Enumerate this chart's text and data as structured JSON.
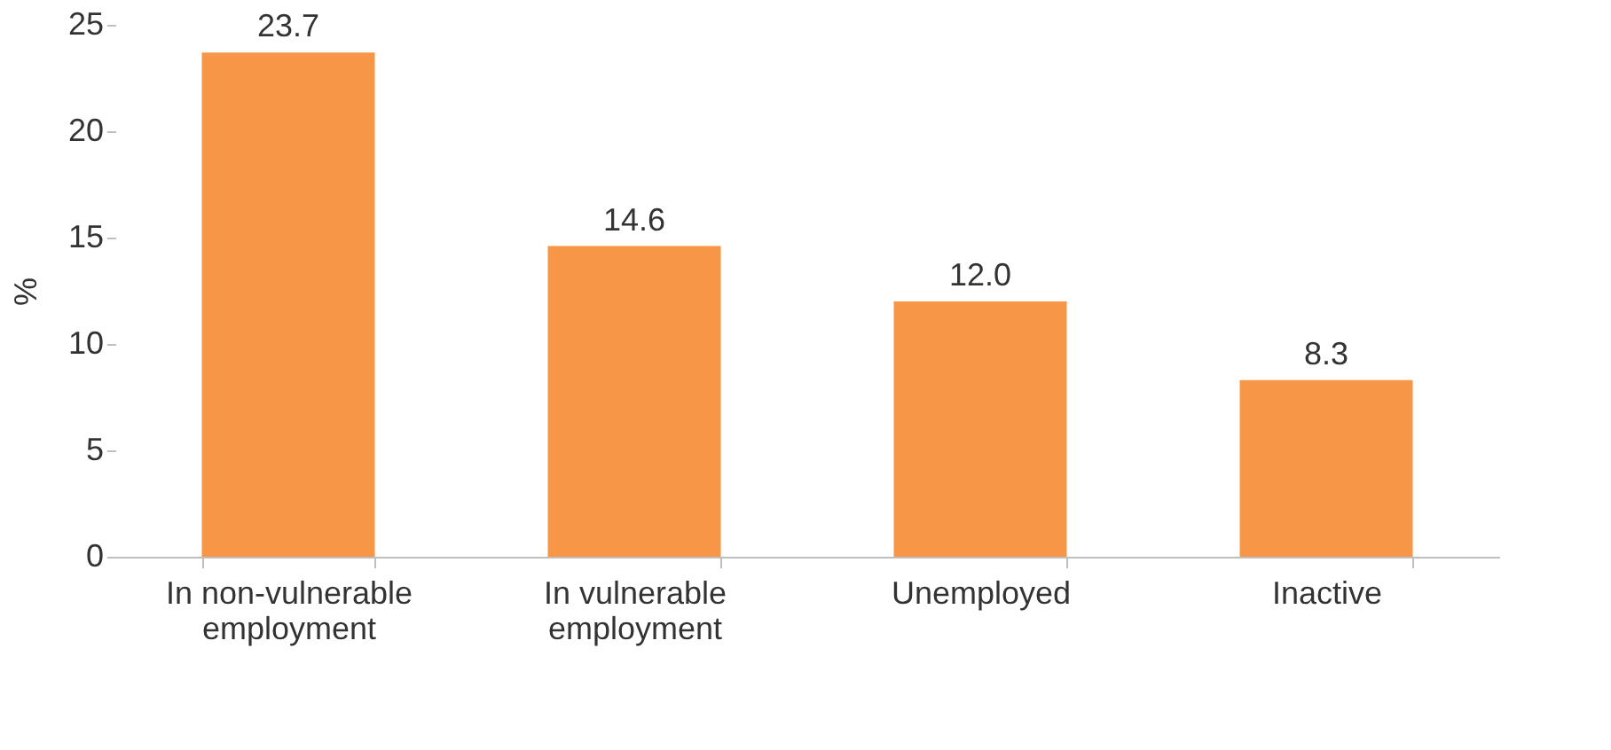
{
  "chart_data": {
    "type": "bar",
    "ylabel": "%",
    "categories": [
      "In non-vulnerable employment",
      "In vulnerable employment",
      "Unemployed",
      "Inactive"
    ],
    "values": [
      23.7,
      14.6,
      12.0,
      8.3
    ],
    "color": "#f79646",
    "value_labels": [
      "23.7",
      "14.6",
      "12.0",
      "8.3"
    ],
    "ylim": [
      0,
      25
    ],
    "yticks": [
      0,
      5,
      10,
      15,
      20,
      25
    ],
    "grid": false
  }
}
